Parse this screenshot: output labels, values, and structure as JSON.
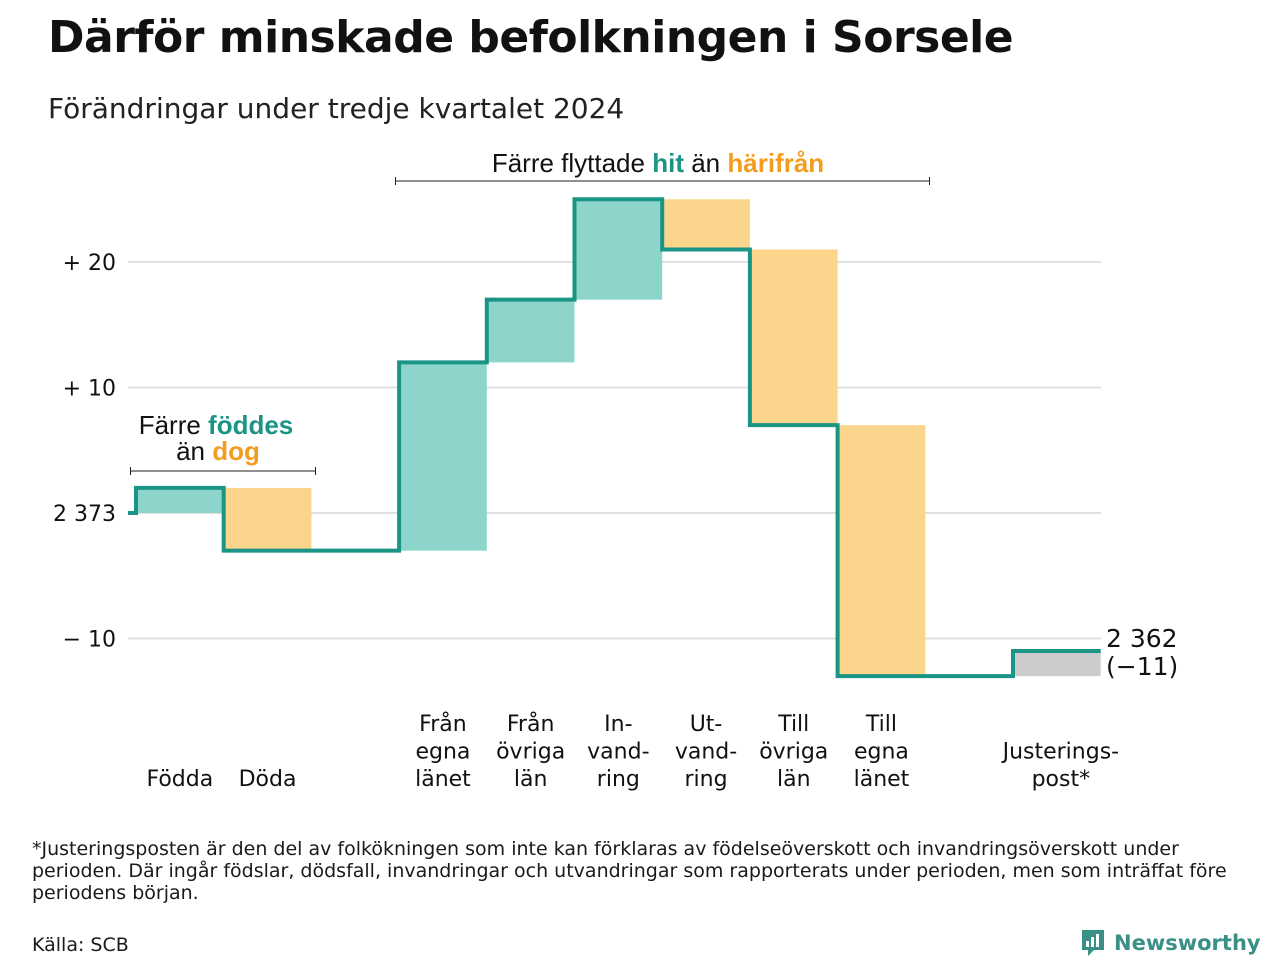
{
  "header": {
    "title": "Därför minskade befolkningen i Sorsele",
    "subtitle": "Förändringar under tredje kvartalet 2024"
  },
  "chart_data": {
    "type": "waterfall",
    "start_value": 2373,
    "end_value": 2362,
    "end_label": "2 362",
    "end_change_label": "(−11)",
    "ylim": [
      -13,
      25
    ],
    "y_ticks": [
      {
        "value": 20,
        "label": "+ 20"
      },
      {
        "value": 10,
        "label": "+ 10"
      },
      {
        "value": 0,
        "label": "2 373"
      },
      {
        "value": -10,
        "label": "− 10"
      }
    ],
    "grid": true,
    "steps": [
      {
        "label": "Födda",
        "change": 2,
        "kind": "in"
      },
      {
        "label": "Döda",
        "change": -5,
        "kind": "out"
      },
      {
        "label": "",
        "change": 0,
        "kind": "gap"
      },
      {
        "label": "Från egna länet",
        "change": 15,
        "kind": "in"
      },
      {
        "label": "Från övriga län",
        "change": 5,
        "kind": "in"
      },
      {
        "label": "In-vand-ring",
        "change": 8,
        "kind": "in"
      },
      {
        "label": "Ut-vand-ring",
        "change": -4,
        "kind": "out"
      },
      {
        "label": "Till övriga län",
        "change": -14,
        "kind": "out"
      },
      {
        "label": "Till egna länet",
        "change": -20,
        "kind": "out"
      },
      {
        "label": "",
        "change": 0,
        "kind": "gap"
      },
      {
        "label": "Justerings-post*",
        "change": 2,
        "kind": "adjust"
      }
    ],
    "category_label_lines": [
      [
        "Födda"
      ],
      [
        "Döda"
      ],
      [],
      [
        "Från",
        "egna",
        "länet"
      ],
      [
        "Från",
        "övriga",
        "län"
      ],
      [
        "In-",
        "vand-",
        "ring"
      ],
      [
        "Ut-",
        "vand-",
        "ring"
      ],
      [
        "Till",
        "övriga",
        "län"
      ],
      [
        "Till",
        "egna",
        "länet"
      ],
      [],
      [
        "Justerings-",
        "post*"
      ]
    ],
    "annotations": [
      {
        "id": "births",
        "lines": [
          [
            "Färre ",
            "föddes"
          ],
          [
            "än ",
            "dog"
          ]
        ]
      },
      {
        "id": "migration",
        "lines": [
          [
            "Färre flyttade ",
            "hit",
            " än ",
            "härifrån"
          ]
        ]
      }
    ],
    "colors": {
      "in": "#8dd5cb",
      "out": "#fbd58c",
      "adjust": "#cccccc",
      "line": "#1a9485",
      "teal_text": "#1a9485",
      "orange_text": "#f39c1f",
      "grid": "#e0e0e0"
    }
  },
  "footnote": "*Justeringsposten är den del av folkökningen som inte kan förklaras av födelseöverskott och invandringsöverskott under perioden. Där ingår födslar, dödsfall, invandringar och utvandringar som rapporterats under perioden, men som inträffat före periodens början.",
  "source": "Källa: SCB",
  "brand": {
    "name": "Newsworthy",
    "icon": "newsworthy-logo-icon",
    "color": "#3a8f86"
  }
}
